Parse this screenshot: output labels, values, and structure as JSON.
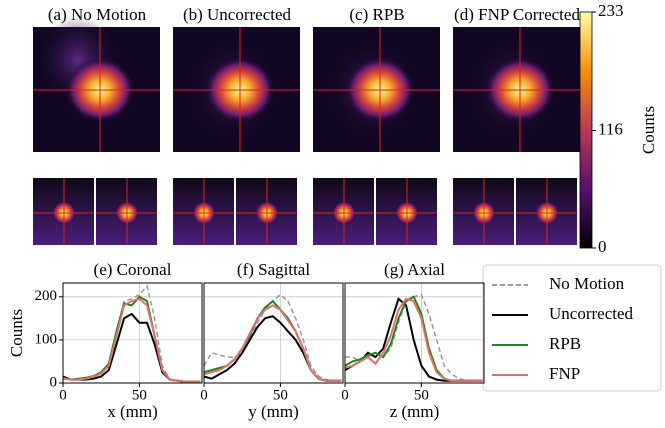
{
  "panels": [
    {
      "title": "(a) No Motion"
    },
    {
      "title": "(b) Uncorrected"
    },
    {
      "title": "(c) RPB"
    },
    {
      "title": "(d) FNP Corrected"
    }
  ],
  "colorbar": {
    "label": "Counts",
    "lim": [
      0,
      233
    ],
    "ticks": [
      0,
      116,
      233
    ]
  },
  "chart_data": [
    {
      "type": "line",
      "title": "(e) Coronal",
      "xlabel": "x (mm)",
      "ylabel": "Counts",
      "x": [
        0,
        5,
        10,
        15,
        20,
        25,
        30,
        35,
        40,
        45,
        50,
        55,
        60,
        65,
        70,
        75,
        80,
        85,
        90
      ],
      "xlim": [
        0,
        91
      ],
      "xticks": [
        0,
        50
      ],
      "ylim": [
        0,
        232
      ],
      "yticks": [
        0,
        100,
        200
      ],
      "grid": true,
      "series": [
        {
          "name": "No Motion",
          "color": "#999999",
          "style": "dashed",
          "values": [
            12,
            8,
            8,
            10,
            14,
            22,
            40,
            120,
            190,
            195,
            205,
            225,
            150,
            40,
            8,
            5,
            3,
            3,
            3
          ]
        },
        {
          "name": "Uncorrected",
          "color": "#000000",
          "style": "solid",
          "values": [
            15,
            8,
            8,
            8,
            10,
            15,
            30,
            90,
            150,
            160,
            140,
            140,
            90,
            25,
            8,
            5,
            3,
            3,
            3
          ]
        },
        {
          "name": "RPB",
          "color": "#1a8a1a",
          "style": "solid",
          "values": [
            12,
            8,
            10,
            12,
            16,
            25,
            45,
            120,
            185,
            180,
            200,
            190,
            110,
            30,
            8,
            5,
            3,
            3,
            3
          ]
        },
        {
          "name": "FNP",
          "color": "#e07070",
          "style": "solid",
          "values": [
            10,
            8,
            8,
            10,
            15,
            22,
            40,
            110,
            180,
            190,
            195,
            180,
            110,
            30,
            8,
            5,
            3,
            3,
            3
          ]
        }
      ]
    },
    {
      "type": "line",
      "title": "(f) Sagittal",
      "xlabel": "y (mm)",
      "x": [
        0,
        5,
        10,
        15,
        20,
        25,
        30,
        35,
        40,
        45,
        50,
        55,
        60,
        65,
        70,
        75,
        80,
        85,
        90
      ],
      "xlim": [
        0,
        91
      ],
      "xticks": [
        0,
        50
      ],
      "ylim": [
        0,
        232
      ],
      "grid": true,
      "series": [
        {
          "color": "#999999",
          "style": "dashed",
          "values": [
            40,
            70,
            65,
            60,
            60,
            70,
            100,
            140,
            170,
            190,
            205,
            190,
            150,
            100,
            40,
            15,
            8,
            5,
            5
          ]
        },
        {
          "color": "#000000",
          "style": "solid",
          "values": [
            15,
            10,
            20,
            30,
            45,
            70,
            100,
            130,
            150,
            155,
            140,
            120,
            100,
            70,
            30,
            10,
            5,
            5,
            5
          ]
        },
        {
          "color": "#1a8a1a",
          "style": "solid",
          "values": [
            25,
            30,
            35,
            40,
            55,
            80,
            110,
            150,
            175,
            190,
            170,
            150,
            120,
            80,
            30,
            10,
            5,
            5,
            5
          ]
        },
        {
          "color": "#e07070",
          "style": "solid",
          "values": [
            20,
            25,
            30,
            40,
            55,
            80,
            115,
            150,
            170,
            180,
            170,
            145,
            120,
            80,
            30,
            10,
            5,
            5,
            5
          ]
        }
      ]
    },
    {
      "type": "line",
      "title": "(g) Axial",
      "xlabel": "z (mm)",
      "x": [
        0,
        5,
        10,
        15,
        20,
        25,
        30,
        35,
        40,
        45,
        50,
        55,
        60,
        65,
        70,
        75,
        80,
        85,
        90
      ],
      "xlim": [
        0,
        91
      ],
      "xticks": [
        0,
        50
      ],
      "ylim": [
        0,
        232
      ],
      "grid": true,
      "series": [
        {
          "color": "#999999",
          "style": "dashed",
          "values": [
            60,
            60,
            50,
            60,
            70,
            60,
            80,
            140,
            190,
            200,
            205,
            160,
            100,
            40,
            20,
            10,
            5,
            5,
            5
          ]
        },
        {
          "color": "#000000",
          "style": "solid",
          "values": [
            30,
            40,
            50,
            70,
            60,
            80,
            140,
            195,
            180,
            100,
            40,
            15,
            8,
            5,
            5,
            5,
            5,
            5,
            5
          ]
        },
        {
          "color": "#1a8a1a",
          "style": "solid",
          "values": [
            40,
            50,
            55,
            65,
            70,
            60,
            90,
            150,
            190,
            200,
            160,
            80,
            30,
            10,
            5,
            5,
            5,
            5,
            5
          ]
        },
        {
          "color": "#e07070",
          "style": "solid",
          "values": [
            35,
            40,
            50,
            60,
            45,
            70,
            110,
            170,
            195,
            190,
            150,
            70,
            25,
            10,
            5,
            5,
            5,
            5,
            5
          ]
        }
      ]
    }
  ]
}
